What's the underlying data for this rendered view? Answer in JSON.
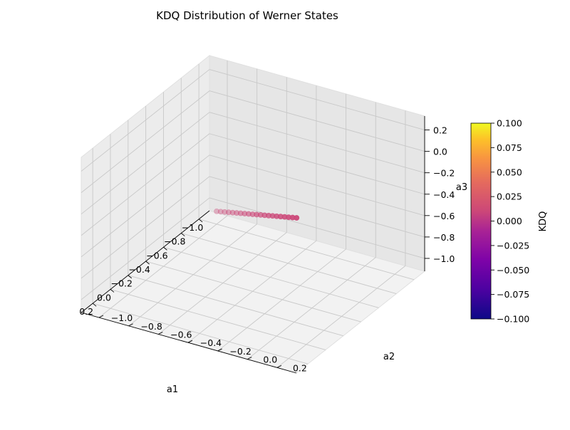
{
  "chart_data": {
    "type": "scatter",
    "title": "KDQ Distribution of Werner States",
    "xlabel": "a1",
    "ylabel": "a2",
    "zlabel": "a3",
    "x_ticks": [
      "−1.0",
      "−0.8",
      "−0.6",
      "−0.4",
      "−0.2",
      "0.0",
      "0.2"
    ],
    "y_ticks": [
      "−1.0",
      "−0.8",
      "−0.6",
      "−0.4",
      "−0.2",
      "0.0",
      "0.2"
    ],
    "z_ticks": [
      "−1.0",
      "−0.8",
      "−0.6",
      "−0.4",
      "−0.2",
      "0.0",
      "0.2"
    ],
    "xlim": [
      -1.0,
      0.33
    ],
    "ylim": [
      -1.0,
      0.33
    ],
    "zlim": [
      -1.0,
      0.33
    ],
    "grid": true,
    "points": {
      "a1": [
        -1.0,
        -0.9333,
        -0.8667,
        -0.8,
        -0.7333,
        -0.6667,
        -0.6,
        -0.5333,
        -0.4667,
        -0.4,
        -0.3333,
        -0.2667,
        -0.2,
        -0.1333,
        -0.0667,
        0.0,
        0.0667,
        0.1333,
        0.2,
        0.2667,
        0.3333
      ],
      "a2": [
        -1.0,
        -0.9333,
        -0.8667,
        -0.8,
        -0.7333,
        -0.6667,
        -0.6,
        -0.5333,
        -0.4667,
        -0.4,
        -0.3333,
        -0.2667,
        -0.2,
        -0.1333,
        -0.0667,
        0.0,
        0.0667,
        0.1333,
        0.2,
        0.2667,
        0.3333
      ],
      "a3": [
        -1.0,
        -0.9333,
        -0.8667,
        -0.8,
        -0.7333,
        -0.6667,
        -0.6,
        -0.5333,
        -0.4667,
        -0.4,
        -0.3333,
        -0.2667,
        -0.2,
        -0.1333,
        -0.0667,
        0.0,
        0.0667,
        0.1333,
        0.2,
        0.2667,
        0.3333
      ],
      "kdq": [
        0,
        0,
        0,
        0,
        0,
        0,
        0,
        0,
        0,
        0,
        0,
        0,
        0,
        0,
        0,
        0,
        0,
        0,
        0,
        0,
        0
      ]
    },
    "colorbar": {
      "label": "KDQ",
      "colormap": "plasma",
      "range": [
        -0.1,
        0.1
      ],
      "ticks": [
        "0.100",
        "0.075",
        "0.050",
        "0.025",
        "0.000",
        "−0.025",
        "−0.050",
        "−0.075",
        "−0.100"
      ]
    },
    "colors": {
      "point": "#cc4778",
      "pane": "#f2f2f2",
      "grid": "#c8c8c8"
    }
  }
}
